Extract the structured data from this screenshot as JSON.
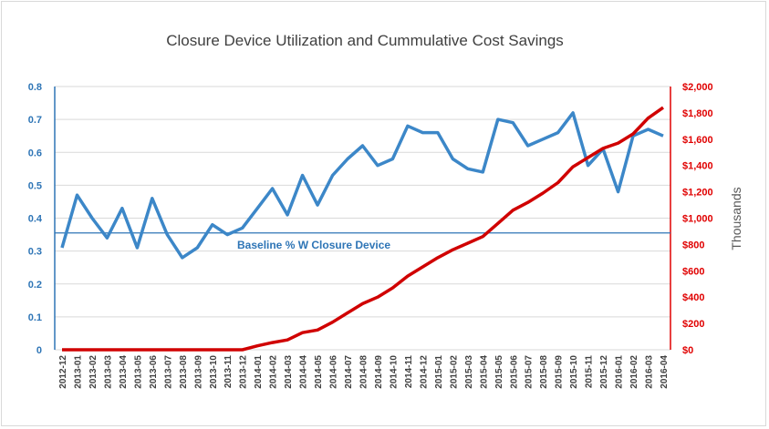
{
  "chart_data": {
    "type": "line",
    "title": "Closure Device Utilization and Cummulative Cost Savings",
    "categories": [
      "2012-12",
      "2013-01",
      "2013-02",
      "2013-03",
      "2013-04",
      "2013-05",
      "2013-06",
      "2013-07",
      "2013-08",
      "2013-09",
      "2013-10",
      "2013-11",
      "2013-12",
      "2014-01",
      "2014-02",
      "2014-03",
      "2014-04",
      "2014-05",
      "2014-06",
      "2014-07",
      "2014-08",
      "2014-09",
      "2014-10",
      "2014-11",
      "2014-12",
      "2015-01",
      "2015-02",
      "2015-03",
      "2015-04",
      "2015-05",
      "2015-06",
      "2015-07",
      "2015-08",
      "2015-09",
      "2015-10",
      "2015-11",
      "2015-12",
      "2016-01",
      "2016-02",
      "2016-03",
      "2016-04"
    ],
    "series": [
      {
        "axis": "left",
        "color": "#3c87c8",
        "values": [
          0.31,
          0.47,
          0.4,
          0.34,
          0.43,
          0.31,
          0.46,
          0.35,
          0.28,
          0.31,
          0.38,
          0.35,
          0.37,
          0.43,
          0.49,
          0.41,
          0.53,
          0.44,
          0.53,
          0.58,
          0.62,
          0.56,
          0.58,
          0.68,
          0.66,
          0.66,
          0.58,
          0.55,
          0.54,
          0.7,
          0.69,
          0.62,
          0.64,
          0.66,
          0.72,
          0.56,
          0.61,
          0.48,
          0.65,
          0.67,
          0.65
        ]
      },
      {
        "axis": "right",
        "color": "#d00000",
        "values": [
          0,
          0,
          0,
          0,
          0,
          0,
          0,
          0,
          0,
          0,
          0,
          0,
          0,
          30,
          55,
          75,
          130,
          150,
          210,
          280,
          350,
          400,
          470,
          560,
          630,
          700,
          760,
          810,
          860,
          960,
          1060,
          1120,
          1190,
          1270,
          1390,
          1460,
          1530,
          1570,
          1640,
          1760,
          1840
        ]
      }
    ],
    "left_axis": {
      "ylim": [
        0,
        0.8
      ],
      "ticks": [
        "0",
        "0.1",
        "0.2",
        "0.3",
        "0.4",
        "0.5",
        "0.6",
        "0.7",
        "0.8"
      ],
      "color": "#2e75b6"
    },
    "right_axis": {
      "ylim": [
        0,
        2000
      ],
      "ticks": [
        "$0",
        "$200",
        "$400",
        "$600",
        "$800",
        "$1,000",
        "$1,200",
        "$1,400",
        "$1,600",
        "$1,800",
        "$2,000"
      ],
      "label": "Thousands",
      "color": "#e00000"
    },
    "baseline": {
      "value": 0.355,
      "label": "Baseline % W Closure Device",
      "color": "#2e75b6"
    },
    "grid": true
  }
}
